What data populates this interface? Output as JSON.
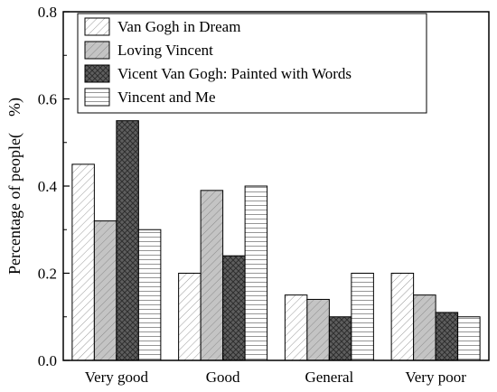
{
  "chart_data": {
    "type": "bar",
    "categories": [
      "Very good",
      "Good",
      "General",
      "Very poor"
    ],
    "series": [
      {
        "name": "Van Gogh in Dream",
        "values": [
          0.45,
          0.2,
          0.15,
          0.2
        ],
        "pattern": "diag-light",
        "fill": "#ffffff"
      },
      {
        "name": "Loving Vincent",
        "values": [
          0.32,
          0.39,
          0.14,
          0.15
        ],
        "pattern": "diag-grey",
        "fill": "#c4c4c4"
      },
      {
        "name": "Vicent Van Gogh: Painted with Words",
        "values": [
          0.55,
          0.24,
          0.1,
          0.11
        ],
        "pattern": "crosshatch-dark",
        "fill": "#5e5e5e"
      },
      {
        "name": "Vincent and Me",
        "values": [
          0.3,
          0.4,
          0.2,
          0.1
        ],
        "pattern": "horizontal-lines",
        "fill": "#ffffff"
      }
    ],
    "ylabel": "Percentage of people(　%)",
    "xlabel": "",
    "ylim": [
      0.0,
      0.8
    ],
    "yticks": [
      "0.0",
      "0.2",
      "0.4",
      "0.6",
      "0.8"
    ],
    "legend_position": "top-right",
    "grid": false
  }
}
